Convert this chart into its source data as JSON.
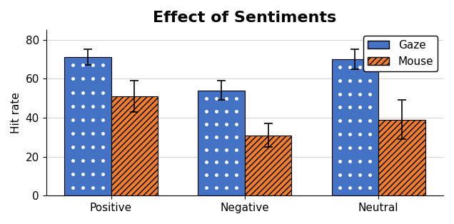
{
  "title": "Effect of Sentiments",
  "ylabel": "Hit rate",
  "categories": [
    "Positive",
    "Negative",
    "Neutral"
  ],
  "gaze_values": [
    71,
    54,
    70
  ],
  "mouse_values": [
    51,
    31,
    39
  ],
  "gaze_errors": [
    4,
    5,
    5
  ],
  "mouse_errors": [
    8,
    6,
    10
  ],
  "gaze_color": "#4472C4",
  "mouse_color": "#ED7D31",
  "ylim": [
    0,
    85
  ],
  "yticks": [
    0,
    20,
    40,
    60,
    80
  ],
  "bar_width": 0.35,
  "title_fontsize": 16,
  "label_fontsize": 11,
  "tick_fontsize": 11,
  "legend_labels": [
    "Gaze",
    "Mouse"
  ]
}
